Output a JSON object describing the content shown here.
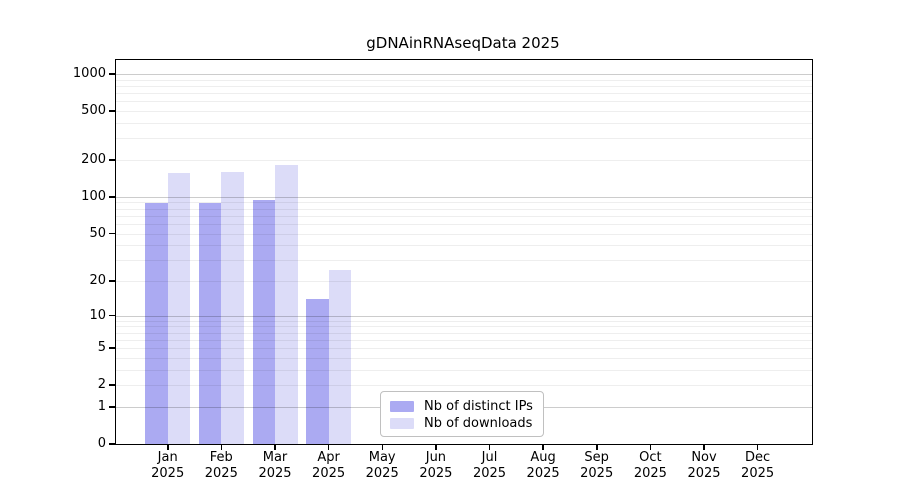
{
  "figure": {
    "title": "gDNAinRNAseqData 2025"
  },
  "chart_data": {
    "type": "bar",
    "title": "gDNAinRNAseqData 2025",
    "yscale": "log1p (symlog-like, 0 at baseline)",
    "ylim": [
      0,
      1300
    ],
    "y_ticks": [
      0,
      1,
      2,
      5,
      10,
      20,
      50,
      100,
      200,
      500,
      1000
    ],
    "grid": "horizontal, major lines at powers of 10 plus faint minor log lines",
    "categories": [
      "Jan",
      "Feb",
      "Mar",
      "Apr",
      "May",
      "Jun",
      "Jul",
      "Aug",
      "Sep",
      "Oct",
      "Nov",
      "Dec"
    ],
    "category_year": "2025",
    "series": [
      {
        "name": "Nb of distinct IPs",
        "color": "#abaaf2",
        "values": [
          89,
          89,
          94,
          14,
          0,
          0,
          0,
          0,
          0,
          0,
          0,
          0
        ]
      },
      {
        "name": "Nb of downloads",
        "color": "#dcdcf8",
        "values": [
          158,
          161,
          182,
          25,
          0,
          0,
          0,
          0,
          0,
          0,
          0,
          0
        ]
      }
    ],
    "legend_position": "inside plot, lower center"
  },
  "legend": {
    "items": [
      {
        "label": "Nb of distinct IPs",
        "swatch_color": "#abaaf2"
      },
      {
        "label": "Nb of downloads",
        "swatch_color": "#dcdcf8"
      }
    ]
  },
  "colors": {
    "background": "#ffffff",
    "axis": "#000000",
    "major_grid": "#cccccc",
    "minor_grid": "#ededed",
    "bar_distinct_ips": "#abaaf2",
    "bar_downloads": "#dcdcf8",
    "text": "#000000",
    "legend_border": "#c0c0c0"
  }
}
